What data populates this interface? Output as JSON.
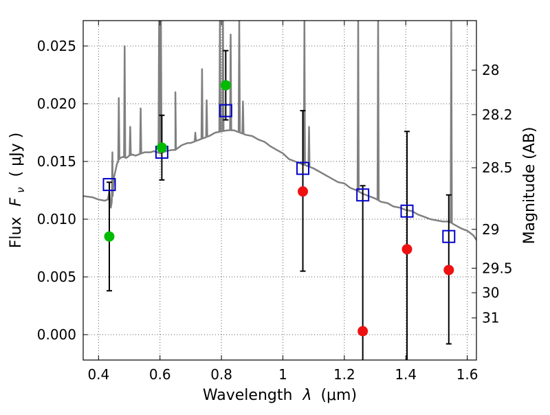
{
  "chart_data": {
    "type": "scatter",
    "xlabel_main": "Wavelength",
    "xlabel_symbol": "λ",
    "xlabel_unit": "(μm)",
    "ylabel_left_main": "Flux",
    "ylabel_left_symbol": "F",
    "ylabel_left_sub": "ν",
    "ylabel_left_unit": "( μJy )",
    "ylabel_right": "Magnitude (AB)",
    "xlim": [
      0.35,
      1.63
    ],
    "ylim": [
      -0.0022,
      0.0272
    ],
    "grid": true,
    "x_ticks": [
      {
        "v": 0.4,
        "label": "0.4"
      },
      {
        "v": 0.6,
        "label": "0.6"
      },
      {
        "v": 0.8,
        "label": "0.8"
      },
      {
        "v": 1.0,
        "label": "1"
      },
      {
        "v": 1.2,
        "label": "1.2"
      },
      {
        "v": 1.4,
        "label": "1.4"
      },
      {
        "v": 1.6,
        "label": "1.6"
      }
    ],
    "y_ticks": [
      {
        "v": 0.0,
        "label": "0.000"
      },
      {
        "v": 0.005,
        "label": "0.005"
      },
      {
        "v": 0.01,
        "label": "0.010"
      },
      {
        "v": 0.015,
        "label": "0.015"
      },
      {
        "v": 0.02,
        "label": "0.020"
      },
      {
        "v": 0.025,
        "label": "0.025"
      }
    ],
    "mag_ticks": [
      {
        "v": 28,
        "label": "28"
      },
      {
        "v": 28.2,
        "label": "28.2"
      },
      {
        "v": 28.5,
        "label": "28.5"
      },
      {
        "v": 29,
        "label": "29"
      },
      {
        "v": 29.5,
        "label": "29.5"
      },
      {
        "v": 30,
        "label": "30"
      },
      {
        "v": 31,
        "label": "31"
      }
    ],
    "observed_points": [
      {
        "x": 0.435,
        "y": 0.0085,
        "yerr_low": 0.0038,
        "yerr_high": 0.0132,
        "color": "#00bb00"
      },
      {
        "x": 0.606,
        "y": 0.0162,
        "yerr_low": 0.0134,
        "yerr_high": 0.019,
        "color": "#00bb00"
      },
      {
        "x": 0.814,
        "y": 0.0216,
        "yerr_low": 0.0186,
        "yerr_high": 0.0246,
        "color": "#00bb00"
      },
      {
        "x": 1.065,
        "y": 0.0124,
        "yerr_low": 0.0055,
        "yerr_high": 0.0194,
        "color": "#ee1111"
      },
      {
        "x": 1.26,
        "y": 0.0003,
        "yerr_low": -0.003,
        "yerr_high": 0.0129,
        "color": "#ee1111"
      },
      {
        "x": 1.404,
        "y": 0.0074,
        "yerr_low": -0.003,
        "yerr_high": 0.0176,
        "color": "#ee1111"
      },
      {
        "x": 1.54,
        "y": 0.0056,
        "yerr_low": -0.0008,
        "yerr_high": 0.0121,
        "color": "#ee1111"
      }
    ],
    "model_photometry": [
      {
        "x": 0.435,
        "y": 0.013
      },
      {
        "x": 0.606,
        "y": 0.0158
      },
      {
        "x": 0.814,
        "y": 0.0194
      },
      {
        "x": 1.065,
        "y": 0.0144
      },
      {
        "x": 1.26,
        "y": 0.0121
      },
      {
        "x": 1.404,
        "y": 0.0107
      },
      {
        "x": 1.54,
        "y": 0.0085
      }
    ],
    "model_spectrum": [
      [
        0.35,
        0.012
      ],
      [
        0.38,
        0.0119
      ],
      [
        0.4,
        0.0117
      ],
      [
        0.42,
        0.0116
      ],
      [
        0.43,
        0.0117
      ],
      [
        0.435,
        0.0124
      ],
      [
        0.44,
        0.011
      ],
      [
        0.446,
        0.012
      ],
      [
        0.45,
        0.0136
      ],
      [
        0.46,
        0.0148
      ],
      [
        0.47,
        0.0153
      ],
      [
        0.48,
        0.0154
      ],
      [
        0.49,
        0.0153
      ],
      [
        0.5,
        0.0155
      ],
      [
        0.51,
        0.0156
      ],
      [
        0.52,
        0.0155
      ],
      [
        0.53,
        0.0156
      ],
      [
        0.54,
        0.0157
      ],
      [
        0.55,
        0.0158
      ],
      [
        0.56,
        0.0158
      ],
      [
        0.57,
        0.0158
      ],
      [
        0.58,
        0.0159
      ],
      [
        0.59,
        0.0158
      ],
      [
        0.6,
        0.0157
      ],
      [
        0.62,
        0.0159
      ],
      [
        0.64,
        0.016
      ],
      [
        0.65,
        0.016
      ],
      [
        0.67,
        0.0164
      ],
      [
        0.69,
        0.0166
      ],
      [
        0.7,
        0.0166
      ],
      [
        0.72,
        0.0168
      ],
      [
        0.74,
        0.017
      ],
      [
        0.76,
        0.0172
      ],
      [
        0.78,
        0.0175
      ],
      [
        0.8,
        0.0176
      ],
      [
        0.82,
        0.0177
      ],
      [
        0.84,
        0.0177
      ],
      [
        0.86,
        0.0175
      ],
      [
        0.88,
        0.0173
      ],
      [
        0.9,
        0.0172
      ],
      [
        0.92,
        0.0169
      ],
      [
        0.94,
        0.0167
      ],
      [
        0.96,
        0.0163
      ],
      [
        0.98,
        0.016
      ],
      [
        1.0,
        0.0157
      ],
      [
        1.02,
        0.0152
      ],
      [
        1.04,
        0.015
      ],
      [
        1.06,
        0.0148
      ],
      [
        1.08,
        0.0146
      ],
      [
        1.1,
        0.0144
      ],
      [
        1.12,
        0.0141
      ],
      [
        1.14,
        0.0138
      ],
      [
        1.16,
        0.0135
      ],
      [
        1.18,
        0.0132
      ],
      [
        1.2,
        0.0131
      ],
      [
        1.22,
        0.0127
      ],
      [
        1.24,
        0.0125
      ],
      [
        1.26,
        0.0122
      ],
      [
        1.28,
        0.012
      ],
      [
        1.3,
        0.0118
      ],
      [
        1.32,
        0.0115
      ],
      [
        1.34,
        0.0114
      ],
      [
        1.36,
        0.0111
      ],
      [
        1.38,
        0.011
      ],
      [
        1.4,
        0.0108
      ],
      [
        1.42,
        0.0107
      ],
      [
        1.44,
        0.0104
      ],
      [
        1.46,
        0.0102
      ],
      [
        1.48,
        0.01
      ],
      [
        1.5,
        0.0099
      ],
      [
        1.52,
        0.0098
      ],
      [
        1.54,
        0.0098
      ],
      [
        1.56,
        0.0095
      ],
      [
        1.58,
        0.0092
      ],
      [
        1.6,
        0.009
      ],
      [
        1.62,
        0.0086
      ],
      [
        1.63,
        0.0082
      ]
    ],
    "emission_lines": [
      {
        "x": 0.445,
        "peak": 0.0158
      },
      {
        "x": 0.466,
        "peak": 0.0205
      },
      {
        "x": 0.485,
        "peak": 0.025
      },
      {
        "x": 0.503,
        "peak": 0.018
      },
      {
        "x": 0.537,
        "peak": 0.0196
      },
      {
        "x": 0.597,
        "peak": 0.0272
      },
      {
        "x": 0.603,
        "peak": 0.0272
      },
      {
        "x": 0.65,
        "peak": 0.021
      },
      {
        "x": 0.715,
        "peak": 0.0175
      },
      {
        "x": 0.737,
        "peak": 0.023
      },
      {
        "x": 0.752,
        "peak": 0.0203
      },
      {
        "x": 0.795,
        "peak": 0.0272
      },
      {
        "x": 0.805,
        "peak": 0.0272
      },
      {
        "x": 0.83,
        "peak": 0.026
      },
      {
        "x": 0.858,
        "peak": 0.0272
      },
      {
        "x": 0.87,
        "peak": 0.0202
      },
      {
        "x": 1.07,
        "peak": 0.0272
      },
      {
        "x": 1.085,
        "peak": 0.018
      },
      {
        "x": 1.245,
        "peak": 0.0272
      },
      {
        "x": 1.31,
        "peak": 0.0272
      },
      {
        "x": 1.548,
        "peak": 0.0272
      }
    ],
    "colors": {
      "spectrum": "#808080",
      "model_box": "#0000cc",
      "errorbar": "#000000",
      "grid": "#555555"
    }
  }
}
